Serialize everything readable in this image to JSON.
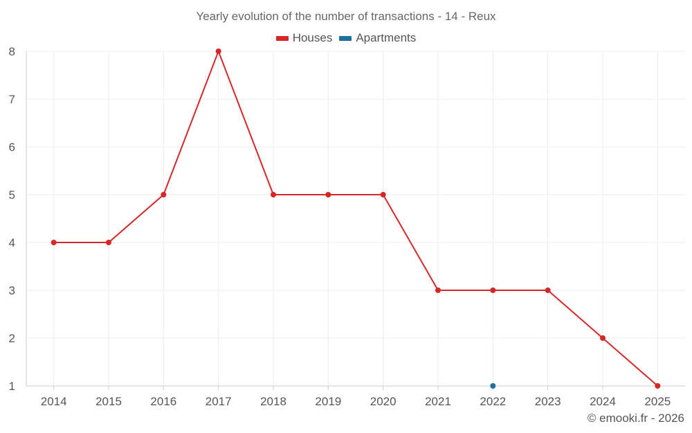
{
  "chart_data": {
    "type": "line",
    "title": "Yearly evolution of the number of transactions - 14 - Reux",
    "categories": [
      "2014",
      "2015",
      "2016",
      "2017",
      "2018",
      "2019",
      "2020",
      "2021",
      "2022",
      "2023",
      "2024",
      "2025"
    ],
    "series": [
      {
        "name": "Houses",
        "color": "#d62728",
        "values": [
          4,
          4,
          5,
          8,
          5,
          5,
          5,
          3,
          3,
          3,
          2,
          1
        ]
      },
      {
        "name": "Apartments",
        "color": "#1f6f9f",
        "values": [
          null,
          null,
          null,
          null,
          null,
          null,
          null,
          null,
          1,
          null,
          null,
          null
        ]
      }
    ],
    "ylim": [
      1,
      8
    ],
    "yticks": [
      1,
      2,
      3,
      4,
      5,
      6,
      7,
      8
    ],
    "grid": true,
    "legend_position": "top-center"
  },
  "credit": "© emooki.fr - 2026"
}
